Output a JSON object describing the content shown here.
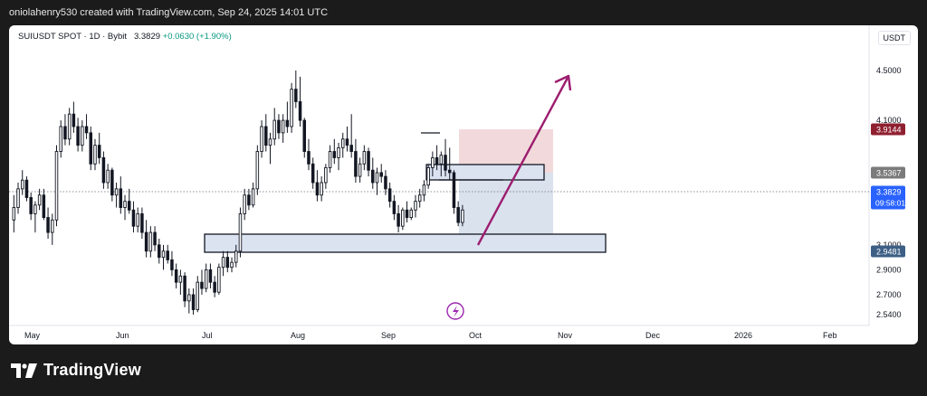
{
  "header": {
    "credit": "oniolahenry530 created with TradingView.com, Sep 24, 2025 14:01 UTC"
  },
  "legend": {
    "symbol": "SUIUSDT SPOT",
    "interval": "1D",
    "exchange": "Bybit",
    "last": "3.3829",
    "change": "+0.0630 (+1.90%)"
  },
  "currency": "USDT",
  "brand": {
    "name": "TradingView",
    "logo_icon": "tradingview-logo-icon"
  },
  "colors": {
    "candle_up": "#089981",
    "candle_down": "#f23645",
    "candle_body": "#131722",
    "zone_fill": "#d3dced",
    "stop_fill": "#f0d3d6",
    "target_fill": "#d6dfec",
    "arrow": "#9c1d6e",
    "last_price_bg": "#2962ff",
    "stop_label_bg": "#8f2030",
    "entry_label_bg": "#7b7b7b",
    "target_label_bg": "#3c5f85"
  },
  "chart_data": {
    "type": "candlestick",
    "symbol": "SUIUSDT SPOT",
    "y_axis": {
      "ticks": [
        "4.5000",
        "4.1000",
        "3.7000",
        "3.1000",
        "2.9000",
        "2.7000",
        "2.5400"
      ],
      "tick_values": [
        4.5,
        4.1,
        3.7,
        3.1,
        2.9,
        2.7,
        2.54
      ],
      "range": [
        2.5,
        4.6
      ]
    },
    "x_axis": {
      "ticks": [
        "May",
        "Jun",
        "Jul",
        "Aug",
        "Sep",
        "Oct",
        "Nov",
        "Dec",
        "2026",
        "Feb"
      ]
    },
    "price_labels": [
      {
        "name": "stop",
        "value": "3.9144"
      },
      {
        "name": "entry",
        "value": "3.5367"
      },
      {
        "name": "last",
        "value": "3.3829",
        "countdown": "09:58:01"
      },
      {
        "name": "target",
        "value": "2.9481"
      }
    ],
    "candles_ohlc": [
      [
        3.3,
        3.5,
        3.2,
        3.4
      ],
      [
        3.4,
        3.6,
        3.35,
        3.55
      ],
      [
        3.55,
        3.7,
        3.5,
        3.62
      ],
      [
        3.62,
        3.65,
        3.45,
        3.48
      ],
      [
        3.48,
        3.52,
        3.3,
        3.35
      ],
      [
        3.35,
        3.45,
        3.2,
        3.42
      ],
      [
        3.42,
        3.55,
        3.38,
        3.5
      ],
      [
        3.5,
        3.55,
        3.3,
        3.32
      ],
      [
        3.32,
        3.4,
        3.15,
        3.2
      ],
      [
        3.2,
        3.35,
        3.1,
        3.3
      ],
      [
        3.3,
        3.9,
        3.25,
        3.85
      ],
      [
        3.85,
        4.1,
        3.8,
        4.05
      ],
      [
        4.05,
        4.15,
        3.9,
        3.95
      ],
      [
        3.95,
        4.2,
        3.9,
        4.15
      ],
      [
        4.15,
        4.25,
        4.0,
        4.05
      ],
      [
        4.05,
        4.12,
        3.85,
        3.9
      ],
      [
        3.9,
        4.1,
        3.85,
        4.05
      ],
      [
        4.05,
        4.15,
        3.95,
        4.0
      ],
      [
        4.0,
        4.05,
        3.7,
        3.75
      ],
      [
        3.75,
        3.95,
        3.7,
        3.9
      ],
      [
        3.9,
        4.0,
        3.75,
        3.8
      ],
      [
        3.8,
        3.85,
        3.55,
        3.6
      ],
      [
        3.6,
        3.75,
        3.55,
        3.7
      ],
      [
        3.7,
        3.72,
        3.45,
        3.5
      ],
      [
        3.5,
        3.6,
        3.4,
        3.55
      ],
      [
        3.55,
        3.65,
        3.35,
        3.4
      ],
      [
        3.4,
        3.5,
        3.3,
        3.45
      ],
      [
        3.45,
        3.55,
        3.35,
        3.38
      ],
      [
        3.38,
        3.45,
        3.2,
        3.25
      ],
      [
        3.25,
        3.4,
        3.2,
        3.35
      ],
      [
        3.35,
        3.4,
        3.15,
        3.2
      ],
      [
        3.2,
        3.3,
        3.0,
        3.05
      ],
      [
        3.05,
        3.25,
        3.0,
        3.2
      ],
      [
        3.2,
        3.25,
        3.05,
        3.1
      ],
      [
        3.1,
        3.15,
        2.95,
        3.0
      ],
      [
        3.0,
        3.1,
        2.9,
        3.05
      ],
      [
        3.05,
        3.1,
        2.95,
        2.98
      ],
      [
        2.98,
        3.05,
        2.85,
        2.9
      ],
      [
        2.9,
        2.95,
        2.75,
        2.8
      ],
      [
        2.8,
        2.9,
        2.7,
        2.85
      ],
      [
        2.85,
        2.88,
        2.6,
        2.65
      ],
      [
        2.65,
        2.75,
        2.55,
        2.7
      ],
      [
        2.7,
        2.75,
        2.54,
        2.58
      ],
      [
        2.58,
        2.85,
        2.56,
        2.8
      ],
      [
        2.8,
        2.9,
        2.7,
        2.75
      ],
      [
        2.75,
        2.95,
        2.72,
        2.9
      ],
      [
        2.9,
        2.95,
        2.75,
        2.8
      ],
      [
        2.8,
        2.85,
        2.68,
        2.72
      ],
      [
        2.72,
        2.95,
        2.7,
        2.92
      ],
      [
        2.92,
        3.05,
        2.85,
        3.0
      ],
      [
        3.0,
        3.05,
        2.88,
        2.92
      ],
      [
        2.92,
        3.0,
        2.88,
        2.96
      ],
      [
        2.96,
        3.1,
        2.92,
        3.05
      ],
      [
        3.05,
        3.4,
        3.0,
        3.35
      ],
      [
        3.35,
        3.55,
        3.3,
        3.5
      ],
      [
        3.5,
        3.55,
        3.38,
        3.42
      ],
      [
        3.42,
        3.6,
        3.4,
        3.55
      ],
      [
        3.55,
        3.9,
        3.5,
        3.85
      ],
      [
        3.85,
        4.1,
        3.8,
        4.05
      ],
      [
        4.05,
        4.15,
        3.85,
        3.9
      ],
      [
        3.9,
        4.0,
        3.75,
        3.95
      ],
      [
        3.95,
        4.2,
        3.9,
        4.1
      ],
      [
        4.1,
        4.15,
        3.95,
        4.0
      ],
      [
        4.0,
        4.15,
        3.92,
        4.1
      ],
      [
        4.1,
        4.25,
        4.0,
        4.05
      ],
      [
        4.05,
        4.4,
        4.0,
        4.35
      ],
      [
        4.35,
        4.5,
        4.2,
        4.25
      ],
      [
        4.25,
        4.45,
        4.05,
        4.1
      ],
      [
        4.1,
        4.12,
        3.8,
        3.85
      ],
      [
        3.85,
        3.95,
        3.7,
        3.75
      ],
      [
        3.75,
        3.8,
        3.55,
        3.6
      ],
      [
        3.6,
        3.7,
        3.45,
        3.5
      ],
      [
        3.5,
        3.65,
        3.45,
        3.6
      ],
      [
        3.6,
        3.75,
        3.55,
        3.72
      ],
      [
        3.72,
        3.9,
        3.68,
        3.85
      ],
      [
        3.85,
        3.95,
        3.75,
        3.8
      ],
      [
        3.8,
        3.92,
        3.7,
        3.88
      ],
      [
        3.88,
        4.0,
        3.8,
        3.95
      ],
      [
        3.95,
        4.05,
        3.85,
        3.9
      ],
      [
        3.9,
        4.15,
        3.8,
        3.85
      ],
      [
        3.85,
        3.95,
        3.6,
        3.65
      ],
      [
        3.65,
        3.8,
        3.6,
        3.75
      ],
      [
        3.75,
        3.9,
        3.7,
        3.85
      ],
      [
        3.85,
        3.88,
        3.65,
        3.7
      ],
      [
        3.7,
        3.8,
        3.55,
        3.6
      ],
      [
        3.6,
        3.72,
        3.5,
        3.68
      ],
      [
        3.68,
        3.75,
        3.6,
        3.65
      ],
      [
        3.65,
        3.7,
        3.5,
        3.55
      ],
      [
        3.55,
        3.6,
        3.4,
        3.45
      ],
      [
        3.45,
        3.5,
        3.3,
        3.35
      ],
      [
        3.35,
        3.42,
        3.2,
        3.25
      ],
      [
        3.25,
        3.4,
        3.22,
        3.38
      ],
      [
        3.38,
        3.45,
        3.28,
        3.32
      ],
      [
        3.32,
        3.4,
        3.3,
        3.38
      ],
      [
        3.38,
        3.5,
        3.32,
        3.45
      ],
      [
        3.45,
        3.55,
        3.4,
        3.5
      ],
      [
        3.5,
        3.62,
        3.45,
        3.58
      ],
      [
        3.58,
        3.75,
        3.55,
        3.72
      ],
      [
        3.72,
        3.85,
        3.65,
        3.8
      ],
      [
        3.8,
        3.9,
        3.7,
        3.75
      ],
      [
        3.75,
        3.85,
        3.65,
        3.82
      ],
      [
        3.82,
        3.95,
        3.65,
        3.7
      ],
      [
        3.7,
        3.88,
        3.62,
        3.68
      ],
      [
        3.68,
        3.7,
        3.35,
        3.4
      ],
      [
        3.4,
        3.45,
        3.25,
        3.28
      ],
      [
        3.28,
        3.42,
        3.25,
        3.38
      ]
    ]
  }
}
